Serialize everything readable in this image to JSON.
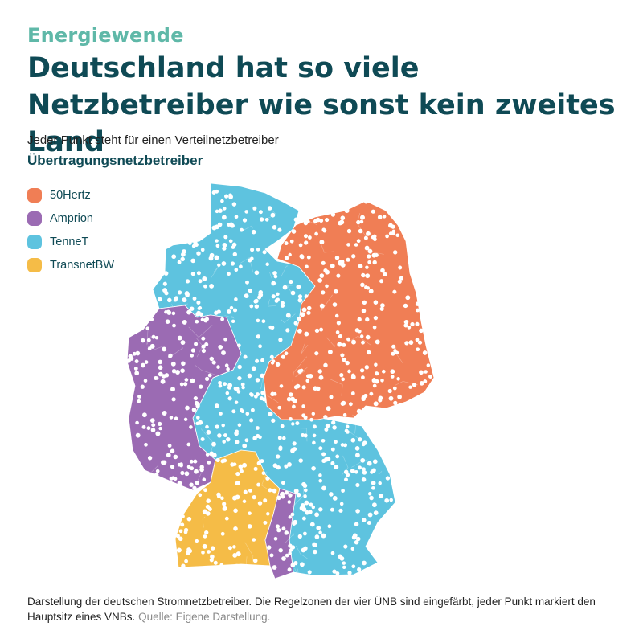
{
  "kicker": "Energiewende",
  "title": "Deutschland hat so viele Netzbetreiber wie sonst kein zweites Land",
  "subtitle": "Jeder Punkt steht für einen Verteilnetzbetreiber",
  "legend": {
    "title": "Übertragungsnetzbetreiber",
    "items": [
      {
        "label": "50Hertz",
        "color": "#f07e55"
      },
      {
        "label": "Amprion",
        "color": "#9b6bb3"
      },
      {
        "label": "TenneT",
        "color": "#5ec3df"
      },
      {
        "label": "TransnetBW",
        "color": "#f5bc47"
      }
    ]
  },
  "map": {
    "dot_color": "#ffffff",
    "border_color": "#ffffff"
  },
  "caption": {
    "text": "Darstellung der deutschen Stromnetzbetreiber. Die Regelzonen der vier ÜNB sind eingefärbt, jeder Punkt markiert den Hauptsitz eines VNBs.",
    "source": "Quelle: Eigene Darstellung."
  }
}
